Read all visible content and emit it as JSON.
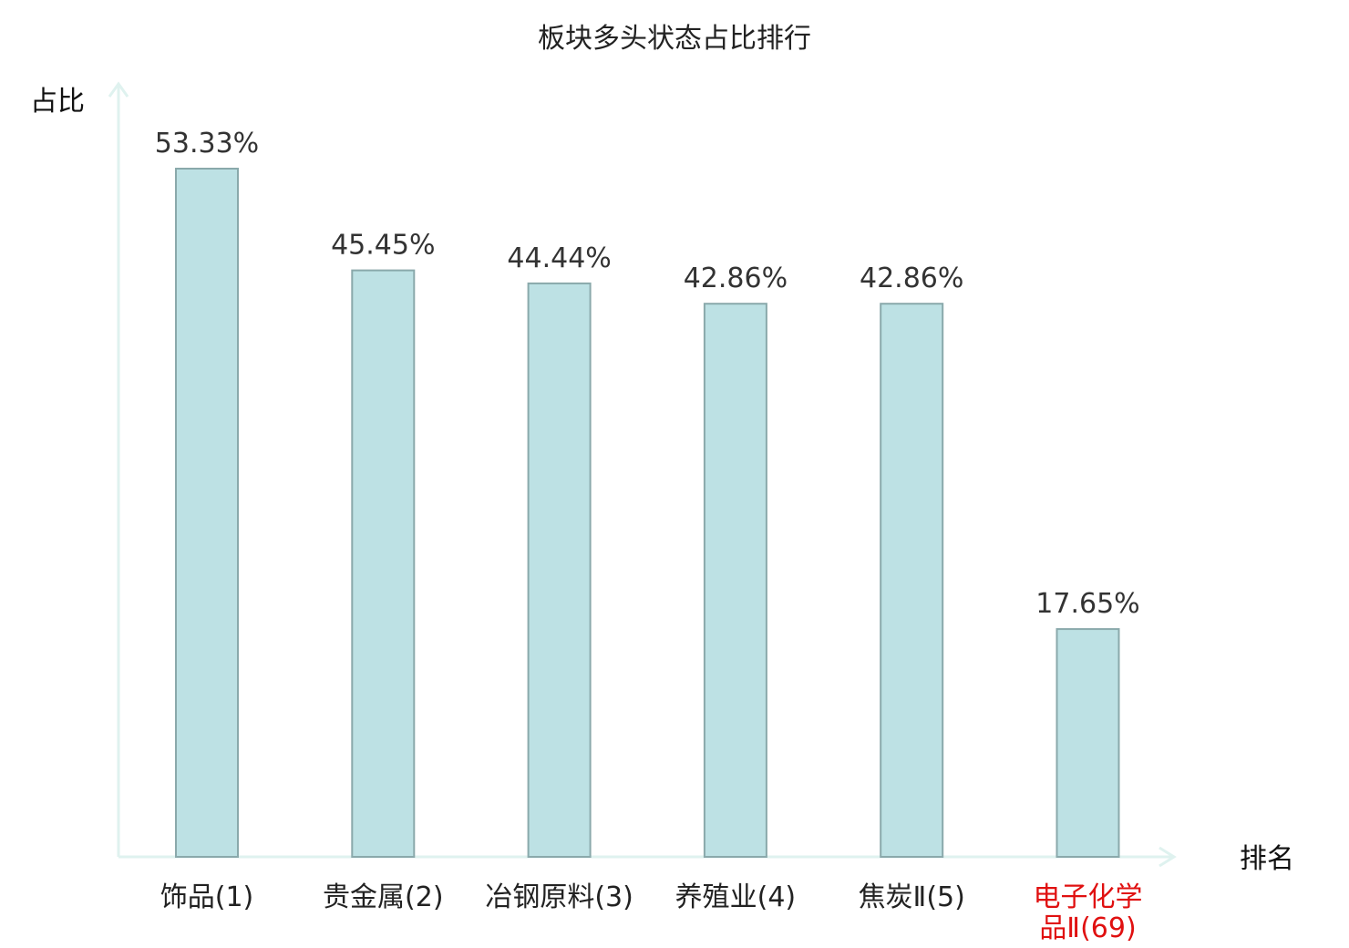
{
  "chart_data": {
    "type": "bar",
    "title": "板块多头状态占比排行",
    "ylabel": "占比",
    "xlabel": "排名",
    "categories": [
      "饰品(1)",
      "贵金属(2)",
      "冶钢原料(3)",
      "养殖业(4)",
      "焦炭Ⅱ(5)",
      "电子化学品Ⅱ(69)"
    ],
    "category_lines": [
      [
        "饰品(1)"
      ],
      [
        "贵金属(2)"
      ],
      [
        "冶钢原料(3)"
      ],
      [
        "养殖业(4)"
      ],
      [
        "焦炭Ⅱ(5)"
      ],
      [
        "电子化学",
        "品Ⅱ(69)"
      ]
    ],
    "values": [
      53.33,
      45.45,
      44.44,
      42.86,
      42.86,
      17.65
    ],
    "value_labels": [
      "53.33%",
      "45.45%",
      "44.44%",
      "42.86%",
      "42.86%",
      "17.65%"
    ],
    "highlight_index": 5,
    "ylim": [
      0,
      60
    ],
    "grid": false,
    "colors": {
      "bar_fill": "#bde1e4",
      "bar_stroke": "#8aa9ab",
      "axis": "#dff2ef",
      "label": "#222222",
      "highlight": "#e01010"
    }
  }
}
